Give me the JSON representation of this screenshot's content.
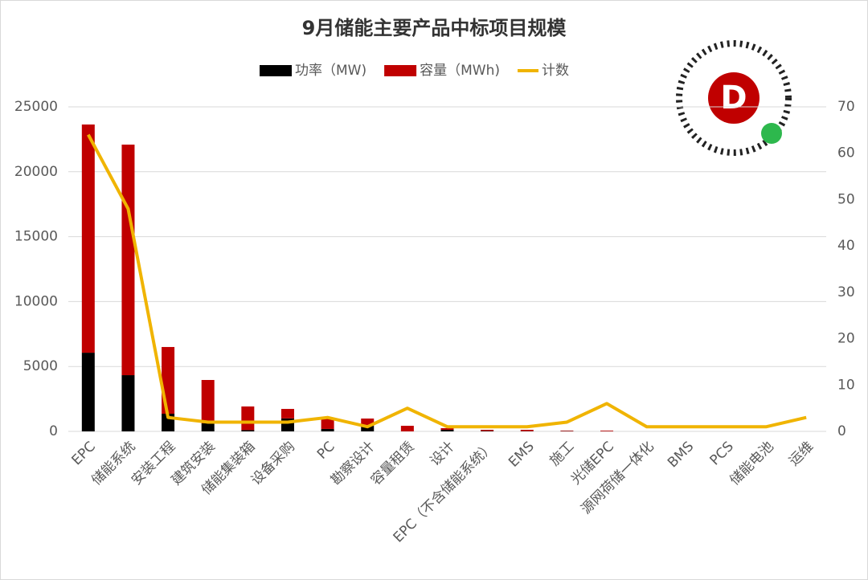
{
  "chart_data": {
    "type": "bar",
    "stacked": true,
    "title": "9月储能主要产品中标项目规模",
    "categories": [
      "EPC",
      "储能系统",
      "安装工程",
      "建筑安装",
      "储能集装箱",
      "设备采购",
      "PC",
      "勘察设计",
      "容量租赁",
      "设计",
      "EPC（不含储能系统）",
      "EMS",
      "施工",
      "光储EPC",
      "源网荷储一体化",
      "BMS",
      "PCS",
      "储能电池",
      "运维"
    ],
    "series": [
      {
        "name": "功率（MW)",
        "type": "bar",
        "color": "#000000",
        "values": [
          6060,
          4330,
          1360,
          620,
          100,
          1000,
          190,
          430,
          0,
          120,
          30,
          20,
          20,
          10,
          0,
          0,
          0,
          0,
          0
        ]
      },
      {
        "name": "容量（MWh)",
        "type": "bar",
        "color": "#c00000",
        "values": [
          17580,
          17760,
          5140,
          3340,
          1820,
          730,
          800,
          560,
          430,
          130,
          90,
          100,
          40,
          50,
          0,
          0,
          0,
          0,
          0
        ]
      },
      {
        "name": "计数",
        "type": "line",
        "axis": "y2",
        "color": "#f0b400",
        "values": [
          64,
          48,
          3,
          2,
          2,
          2,
          3,
          1,
          5,
          1,
          1,
          1,
          2,
          6,
          1,
          1,
          1,
          1,
          3
        ]
      }
    ],
    "ylim": [
      0,
      25000
    ],
    "yticks": [
      0,
      5000,
      10000,
      15000,
      20000,
      25000
    ],
    "y2lim": [
      0,
      70
    ],
    "y2ticks": [
      0,
      10,
      20,
      30,
      40,
      50,
      60,
      70
    ],
    "grid": true,
    "legend": "top"
  }
}
